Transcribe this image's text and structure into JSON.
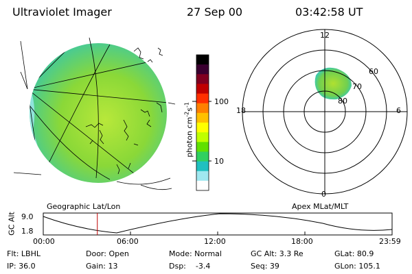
{
  "header": {
    "instrument": "Ultraviolet Imager",
    "date": "27 Sep 00",
    "time": "03:42:58 UT"
  },
  "colorbar": {
    "label": "photon cm",
    "label_exp1": "-2",
    "label_mid": "s",
    "label_exp2": "-1",
    "ticks": [
      "100",
      "10"
    ],
    "colors": [
      "#000000",
      "#3a0030",
      "#800020",
      "#c00000",
      "#ff3000",
      "#ff8000",
      "#ffc000",
      "#ffff00",
      "#c0ff00",
      "#60e000",
      "#30d060",
      "#20c0c0",
      "#a0e8f0",
      "#ffffff"
    ]
  },
  "geo_panel": {
    "caption": "Geographic Lat/Lon"
  },
  "polar_panel": {
    "caption": "Apex MLat/MLT",
    "mlt_labels": [
      "12",
      "18",
      "6",
      "0"
    ],
    "lat_labels": [
      "60",
      "70",
      "80"
    ]
  },
  "timeline": {
    "axis_label": "GC Alt",
    "y_top": "9.0",
    "y_bottom": "1.8",
    "ticks": [
      "00:00",
      "06:00",
      "12:00",
      "18:00",
      "23:59"
    ],
    "current_fraction": 0.155
  },
  "footer": {
    "row1": [
      "Flt: LBHL",
      "Door: Open",
      "Mode: Normal",
      "GC Alt: 3.3 Re",
      "GLat: 80.9"
    ],
    "row2": [
      "IP: 36.0",
      "Gain: 13",
      "Dsp:    -3.4",
      "Seq: 39",
      "GLon: 105.1"
    ]
  }
}
